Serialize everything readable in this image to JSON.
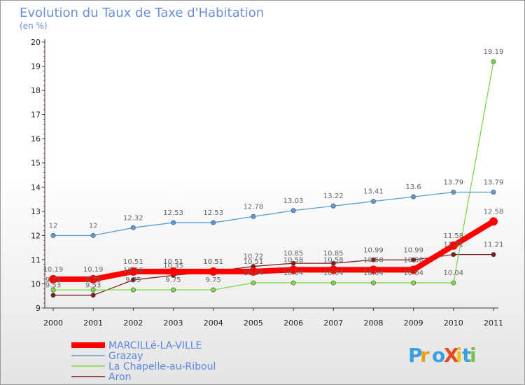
{
  "chart_data": {
    "type": "line",
    "title": "Evolution du Taux de Taxe d'Habitation",
    "subtitle": "(en %)",
    "xlabel": "",
    "ylabel": "",
    "ylim": [
      9,
      20
    ],
    "yticks": [
      9,
      10,
      11,
      12,
      13,
      14,
      15,
      16,
      17,
      18,
      19,
      20
    ],
    "categories": [
      "2000",
      "2001",
      "2002",
      "2003",
      "2004",
      "2005",
      "2006",
      "2007",
      "2008",
      "2009",
      "2010",
      "2011"
    ],
    "series": [
      {
        "name": "MARCILLé-LA-VILLE",
        "color": "#ff0000",
        "values": [
          10.19,
          10.19,
          10.51,
          10.51,
          10.51,
          10.51,
          10.58,
          10.58,
          10.58,
          10.58,
          11.58,
          12.58
        ],
        "labels": [
          "10.19",
          "10.19",
          "10.51",
          "10.51",
          "10.51",
          "10.51",
          "10.58",
          "10.58",
          "10.58",
          "10.58",
          "11.58",
          "12.58"
        ]
      },
      {
        "name": "Grazay",
        "color": "#5b9bd5",
        "values": [
          12,
          12,
          12.32,
          12.53,
          12.53,
          12.78,
          13.03,
          13.22,
          13.41,
          13.6,
          13.79,
          13.79
        ],
        "labels": [
          "12",
          "12",
          "12.32",
          "12.53",
          "12.53",
          "12.78",
          "13.03",
          "13.22",
          "13.41",
          "13.6",
          "13.79",
          "13.79"
        ]
      },
      {
        "name": "La Chapelle-au-Riboul",
        "color": "#7ed64a",
        "values": [
          9.75,
          9.75,
          9.75,
          9.75,
          9.75,
          10.04,
          10.04,
          10.04,
          10.04,
          10.04,
          10.04,
          19.19
        ],
        "labels": [
          "9.75",
          "9.75",
          "9.75",
          "9.75",
          "9.75",
          "10.04",
          "10.04",
          "10.04",
          "10.04",
          "10.04",
          "10.04",
          "19.19"
        ]
      },
      {
        "name": "Aron",
        "color": "#7a1f1f",
        "values": [
          9.53,
          9.53,
          10.16,
          10.35,
          10.51,
          10.72,
          10.85,
          10.85,
          10.99,
          10.99,
          11.21,
          11.21
        ],
        "labels": [
          "9.53",
          "9.53",
          "10.16",
          "10.35",
          "10.51",
          "10.72",
          "10.85",
          "10.85",
          "10.99",
          "10.99",
          "11.21",
          "11.21"
        ]
      }
    ],
    "legend_position": "bottom-left"
  },
  "logo": {
    "text": "ProXiti",
    "letters": [
      "P",
      "r",
      "o",
      "X",
      "i",
      "t",
      "i"
    ],
    "colors": [
      "#3aa0e0",
      "#e8a020",
      "#3aa0e0",
      "#e84a20",
      "#f0c020",
      "#3aa0e0",
      "#7ac040"
    ]
  }
}
